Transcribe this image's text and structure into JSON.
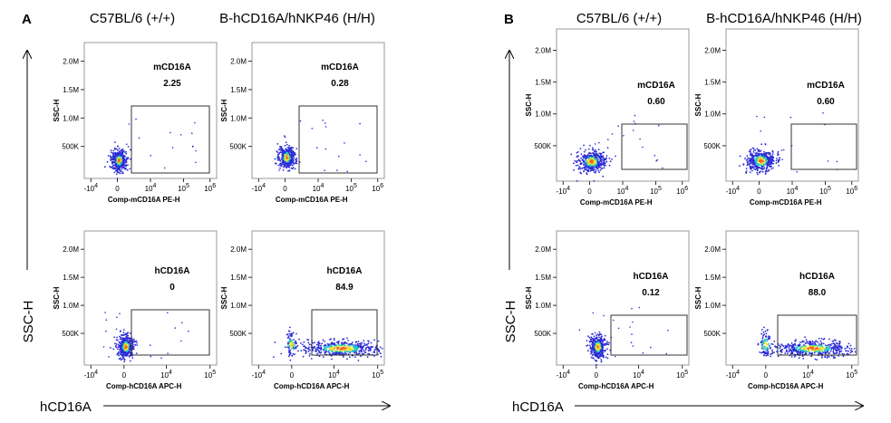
{
  "figure": {
    "panels": [
      {
        "letter": "A",
        "col_titles": [
          "C57BL/6 (+/+)",
          "B-hCD16A/hNKP46 (H/H)"
        ],
        "y_axis_label": "SSC-H",
        "x_axis_label": "hCD16A"
      },
      {
        "letter": "B",
        "col_titles": [
          "C57BL/6 (+/+)",
          "B-hCD16A/hNKP46 (H/H)"
        ],
        "y_axis_label": "SSC-H",
        "x_axis_label": "hCD16A"
      }
    ]
  },
  "colors": {
    "density_low": "#2b2bd6",
    "density_mid": "#21c7c7",
    "density_high": "#f0e030",
    "density_peak": "#f06a1e",
    "gate": "#333333"
  },
  "chart_data": [
    {
      "type": "scatter",
      "panel": "A",
      "row": 1,
      "col": 1,
      "gate_label": "mCD16A",
      "gate_value": "2.25",
      "xlabel": "Comp-mCD16A PE-H",
      "ylabel": "SSC-H",
      "x_ticks": [
        "-10^4",
        "0",
        "10^4",
        "10^5",
        "10^6"
      ],
      "y_ticks": [
        "500K",
        "1.0M",
        "1.5M",
        "2.0M"
      ],
      "cluster": {
        "x": 0.3,
        "y": 250000
      },
      "population": "low"
    },
    {
      "type": "scatter",
      "panel": "A",
      "row": 1,
      "col": 2,
      "gate_label": "mCD16A",
      "gate_value": "0.28",
      "xlabel": "Comp-mCD16A PE-H",
      "ylabel": "SSC-H",
      "x_ticks": [
        "-10^4",
        "0",
        "10^4",
        "10^5",
        "10^6"
      ],
      "y_ticks": [
        "500K",
        "1.0M",
        "1.5M",
        "2.0M"
      ],
      "cluster": {
        "x": 0.2,
        "y": 300000
      },
      "population": "low"
    },
    {
      "type": "scatter",
      "panel": "A",
      "row": 2,
      "col": 1,
      "gate_label": "hCD16A",
      "gate_value": "0",
      "xlabel": "Comp-hCD16A APC-H",
      "ylabel": "SSC-H",
      "x_ticks": [
        "-10^4",
        "0",
        "10^4",
        "10^5"
      ],
      "y_ticks": [
        "500K",
        "1.0M",
        "1.5M",
        "2.0M"
      ],
      "cluster": {
        "x": 0.1,
        "y": 260000
      },
      "population": "low"
    },
    {
      "type": "scatter",
      "panel": "A",
      "row": 2,
      "col": 2,
      "gate_label": "hCD16A",
      "gate_value": "84.9",
      "xlabel": "Comp-hCD16A APC-H",
      "ylabel": "SSC-H",
      "x_ticks": [
        "-10^4",
        "0",
        "10^4",
        "10^5"
      ],
      "y_ticks": [
        "500K",
        "1.0M",
        "1.5M",
        "2.0M"
      ],
      "cluster": {
        "x": 3.8,
        "y": 230000
      },
      "population": "high"
    },
    {
      "type": "scatter",
      "panel": "B",
      "row": 1,
      "col": 1,
      "gate_label": "mCD16A",
      "gate_value": "0.60",
      "xlabel": "Comp-mCD16A PE-H",
      "ylabel": "SSC-H",
      "x_ticks": [
        "-10^4",
        "0",
        "10^4",
        "10^5",
        "10^6"
      ],
      "y_ticks": [
        "500K",
        "1.0M",
        "1.5M",
        "2.0M"
      ],
      "cluster": {
        "x": 0.4,
        "y": 250000
      },
      "population": "low"
    },
    {
      "type": "scatter",
      "panel": "B",
      "row": 1,
      "col": 2,
      "gate_label": "mCD16A",
      "gate_value": "0.60",
      "xlabel": "Comp-mCD16A PE-H",
      "ylabel": "SSC-H",
      "x_ticks": [
        "-10^4",
        "0",
        "10^4",
        "10^5",
        "10^6"
      ],
      "y_ticks": [
        "500K",
        "1.0M",
        "1.5M",
        "2.0M"
      ],
      "cluster": {
        "x": 0.3,
        "y": 260000
      },
      "population": "low"
    },
    {
      "type": "scatter",
      "panel": "B",
      "row": 2,
      "col": 1,
      "gate_label": "hCD16A",
      "gate_value": "0.12",
      "xlabel": "Comp-hCD16A APC-H",
      "ylabel": "SSC-H",
      "x_ticks": [
        "-10^4",
        "0",
        "10^4",
        "10^5"
      ],
      "y_ticks": [
        "500K",
        "1.0M",
        "1.5M",
        "2.0M"
      ],
      "cluster": {
        "x": 0.2,
        "y": 260000
      },
      "population": "low"
    },
    {
      "type": "scatter",
      "panel": "B",
      "row": 2,
      "col": 2,
      "gate_label": "hCD16A",
      "gate_value": "88.0",
      "xlabel": "Comp-hCD16A APC-H",
      "ylabel": "SSC-H",
      "x_ticks": [
        "-10^4",
        "0",
        "10^4",
        "10^5"
      ],
      "y_ticks": [
        "500K",
        "1.0M",
        "1.5M",
        "2.0M"
      ],
      "cluster": {
        "x": 3.5,
        "y": 230000
      },
      "population": "high"
    }
  ]
}
